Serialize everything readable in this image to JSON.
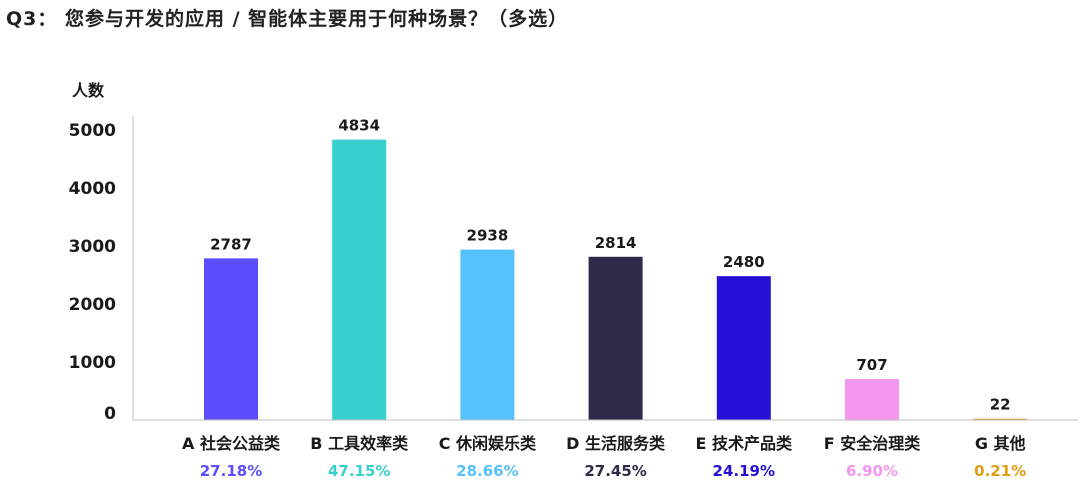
{
  "title": "Q3： 您参与开发的应用 / 智能体主要用于何种场景？（多选）",
  "chart_data": {
    "type": "bar",
    "ylabel": "人数",
    "ylim": [
      0,
      5000
    ],
    "yticks": [
      0,
      1000,
      2000,
      3000,
      4000,
      5000
    ],
    "categories": [
      "A 社会公益类",
      "B 工具效率类",
      "C 休闲娱乐类",
      "D 生活服务类",
      "E 技术产品类",
      "F 安全治理类",
      "G 其他"
    ],
    "values": [
      2787,
      4834,
      2938,
      2814,
      2480,
      707,
      22
    ],
    "percentages": [
      "27.18%",
      "47.15%",
      "28.66%",
      "27.45%",
      "24.19%",
      "6.90%",
      "0.21%"
    ],
    "colors": [
      "#5c4dff",
      "#38d0cf",
      "#55c2fb",
      "#2d2a4a",
      "#2410d6",
      "#f597f0",
      "#e29c12"
    ],
    "grid": false
  }
}
